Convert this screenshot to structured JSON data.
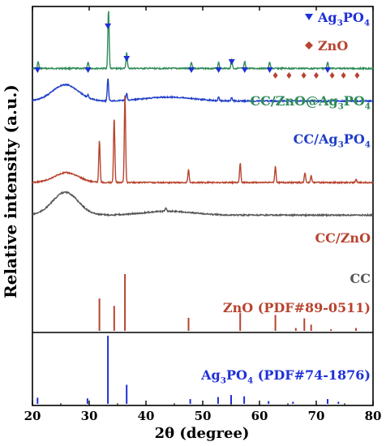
{
  "chart_data": {
    "type": "line",
    "xlabel": "2θ (degree)",
    "ylabel": "Relative intensity (a.u.)",
    "xlim": [
      20,
      80
    ],
    "xticks": [
      20,
      30,
      40,
      50,
      60,
      70,
      80
    ],
    "grid": false,
    "legend": {
      "placement": "top-right",
      "entries": [
        {
          "marker": "▼",
          "label": "Ag",
          "sub": "3",
          "label2": "PO",
          "sub2": "4",
          "color": "#1f2fd8"
        },
        {
          "marker": "♦",
          "label": "ZnO",
          "sub": "",
          "label2": "",
          "sub2": "",
          "color": "#b8432f"
        }
      ]
    },
    "series": [
      {
        "name": "CC/ZnO@Ag3PO4",
        "label_parts": [
          "CC/ZnO@Ag",
          "3",
          "PO",
          "4"
        ],
        "color": "#2e8b57",
        "baseline": 0.19,
        "hump": {
          "center": 25.8,
          "width": 3.0,
          "height": 0.0
        },
        "peaks": [
          [
            21.0,
            0.02
          ],
          [
            29.8,
            0.02
          ],
          [
            33.4,
            0.18
          ],
          [
            36.6,
            0.05
          ],
          [
            48.0,
            0.02
          ],
          [
            52.8,
            0.02
          ],
          [
            55.1,
            0.03
          ],
          [
            57.4,
            0.02
          ],
          [
            61.8,
            0.02
          ],
          [
            72.0,
            0.02
          ]
        ]
      },
      {
        "name": "CC/Ag3PO4",
        "label_parts": [
          "CC/Ag",
          "3",
          "PO",
          "4"
        ],
        "color": "#1f3ec8",
        "baseline": 0.29,
        "hump": {
          "center": 25.8,
          "width": 3.2,
          "height": 0.05
        },
        "peaks": [
          [
            29.8,
            0.01
          ],
          [
            33.3,
            0.07
          ],
          [
            36.6,
            0.02
          ],
          [
            52.8,
            0.01
          ],
          [
            55.1,
            0.01
          ]
        ]
      },
      {
        "name": "CC/ZnO",
        "label_parts": [
          "CC/ZnO"
        ],
        "color": "#b8432f",
        "baseline": 0.54,
        "hump": {
          "center": 26.0,
          "width": 3.0,
          "height": 0.03
        },
        "peaks": [
          [
            31.8,
            0.13
          ],
          [
            34.4,
            0.2
          ],
          [
            36.3,
            0.27
          ],
          [
            47.5,
            0.04
          ],
          [
            56.6,
            0.06
          ],
          [
            62.8,
            0.05
          ],
          [
            68.0,
            0.03
          ],
          [
            69.1,
            0.02
          ],
          [
            77.0,
            0.01
          ]
        ]
      },
      {
        "name": "CC",
        "label_parts": [
          "CC"
        ],
        "color": "#555555",
        "baseline": 0.64,
        "hump": {
          "center": 25.8,
          "width": 3.2,
          "height": 0.07
        },
        "peaks": [
          [
            43.5,
            0.01
          ]
        ]
      }
    ],
    "references": [
      {
        "name": "ZnO (PDF#89-0511)",
        "label_parts": [
          "ZnO (PDF#89-0511)"
        ],
        "color": "#b8432f",
        "lines": [
          [
            31.8,
            0.57
          ],
          [
            34.4,
            0.44
          ],
          [
            36.3,
            1.0
          ],
          [
            47.5,
            0.23
          ],
          [
            56.6,
            0.32
          ],
          [
            62.8,
            0.28
          ],
          [
            66.4,
            0.05
          ],
          [
            67.9,
            0.22
          ],
          [
            69.1,
            0.11
          ],
          [
            72.6,
            0.03
          ],
          [
            77.0,
            0.05
          ]
        ]
      },
      {
        "name": "Ag3PO4 (PDF#74-1876)",
        "label_parts": [
          "Ag",
          "3",
          "PO",
          "4",
          " (PDF#74-1876)"
        ],
        "color": "#1f2fd8",
        "lines": [
          [
            20.9,
            0.09
          ],
          [
            29.7,
            0.08
          ],
          [
            33.3,
            1.0
          ],
          [
            36.6,
            0.28
          ],
          [
            47.8,
            0.07
          ],
          [
            52.7,
            0.1
          ],
          [
            55.0,
            0.13
          ],
          [
            57.3,
            0.11
          ],
          [
            61.6,
            0.04
          ],
          [
            65.9,
            0.03
          ],
          [
            72.0,
            0.07
          ],
          [
            73.9,
            0.03
          ]
        ]
      }
    ],
    "markers": {
      "ag3po4_positions": [
        20.9,
        29.8,
        33.3,
        36.6,
        48.0,
        52.8,
        55.1,
        57.4,
        61.8,
        72.0
      ],
      "zno_positions": [
        62.8,
        65.2,
        67.8,
        70.0,
        72.8,
        74.8,
        77.2
      ]
    }
  }
}
